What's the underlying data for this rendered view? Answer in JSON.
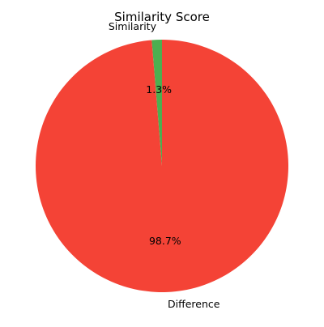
{
  "chart_data": {
    "type": "pie",
    "title": "Similarity Score",
    "slices": [
      {
        "label": "Similarity",
        "value": 1.3,
        "percent_label": "1.3%",
        "color": "#4caf50"
      },
      {
        "label": "Difference",
        "value": 98.7,
        "percent_label": "98.7%",
        "color": "#f44336"
      }
    ],
    "start_angle_deg": 90,
    "direction": "counterclockwise"
  }
}
